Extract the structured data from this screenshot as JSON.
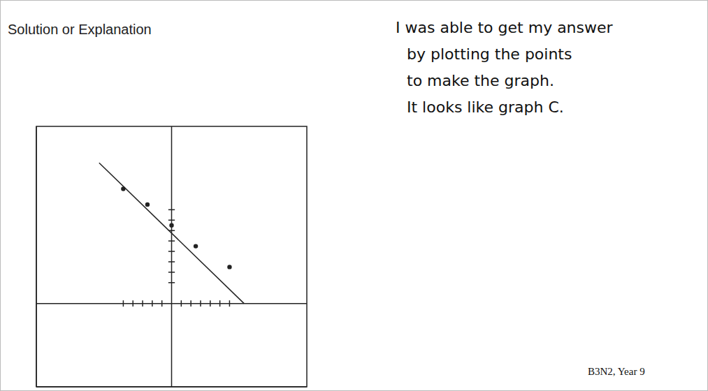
{
  "header": {
    "title": "Solution or Explanation"
  },
  "chart_data": {
    "type": "scatter",
    "xlim": [
      -14,
      14
    ],
    "ylim": [
      -8,
      17
    ],
    "xticks": [
      -5,
      -4,
      -3,
      -2,
      -1,
      1,
      2,
      3,
      4,
      5,
      6
    ],
    "yticks": [
      2,
      3,
      4,
      5,
      6,
      7,
      8,
      9
    ],
    "grid": false,
    "tick_labels": false,
    "series": [
      {
        "type": "scatter",
        "marker": "dot",
        "color": "#222222",
        "x": [
          -5,
          -2.5,
          0,
          2.5,
          6
        ],
        "values": [
          11,
          9.5,
          7.5,
          5.5,
          3.5
        ]
      },
      {
        "type": "line",
        "line_style": "solid",
        "color": "#222222",
        "x": [
          -7.5,
          7.5
        ],
        "values": [
          13.5,
          0
        ]
      }
    ]
  },
  "explanation": {
    "lines": [
      "I was able to get my answer",
      "by plotting the points",
      "to make the graph.",
      "It looks like graph C."
    ]
  },
  "label": "B3N2, Year 9"
}
